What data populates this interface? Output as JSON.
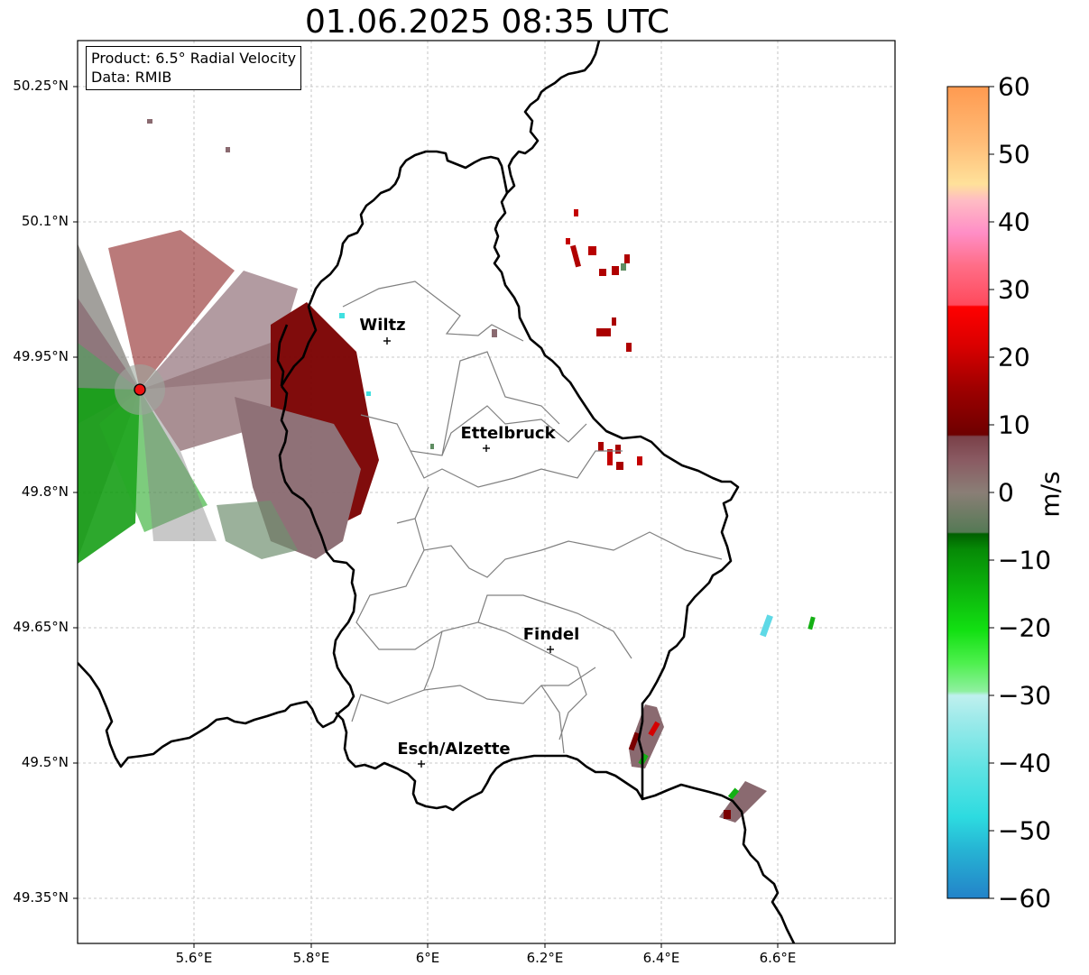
{
  "title": "01.06.2025 08:35 UTC",
  "info": {
    "product": "Product: 6.5° Radial Velocity",
    "data": "Data: RMIB"
  },
  "map": {
    "lat_range": [
      49.3,
      50.3
    ],
    "lon_range": [
      5.4,
      6.8
    ],
    "lat_ticks": [
      "50.25°N",
      "50.1°N",
      "49.95°N",
      "49.8°N",
      "49.65°N",
      "49.5°N",
      "49.35°N"
    ],
    "lon_ticks": [
      "5.6°E",
      "5.8°E",
      "6°E",
      "6.2°E",
      "6.4°E",
      "6.6°E"
    ],
    "grid": true,
    "cities": [
      {
        "name": "Wiltz",
        "lon": 5.93,
        "lat": 49.966
      },
      {
        "name": "Ettelbruck",
        "lon": 6.1,
        "lat": 49.848
      },
      {
        "name": "Findel",
        "lon": 6.21,
        "lat": 49.627
      },
      {
        "name": "Esch/Alzette",
        "lon": 5.99,
        "lat": 49.5
      }
    ],
    "radar_site": {
      "lon": 5.505,
      "lat": 49.914,
      "color": "#ee1111"
    }
  },
  "colorbar": {
    "label": "m/s",
    "vmin": -60,
    "vmax": 60,
    "ticks": [
      "60",
      "50",
      "40",
      "30",
      "20",
      "10",
      "0",
      "−10",
      "−20",
      "−30",
      "−40",
      "−50",
      "−60"
    ]
  },
  "colors": {
    "outbound_dark": "#7a0000",
    "outbound_red": "#c40000",
    "inbound_green": "#0a9a0a",
    "near_zero": "#7d6670"
  }
}
